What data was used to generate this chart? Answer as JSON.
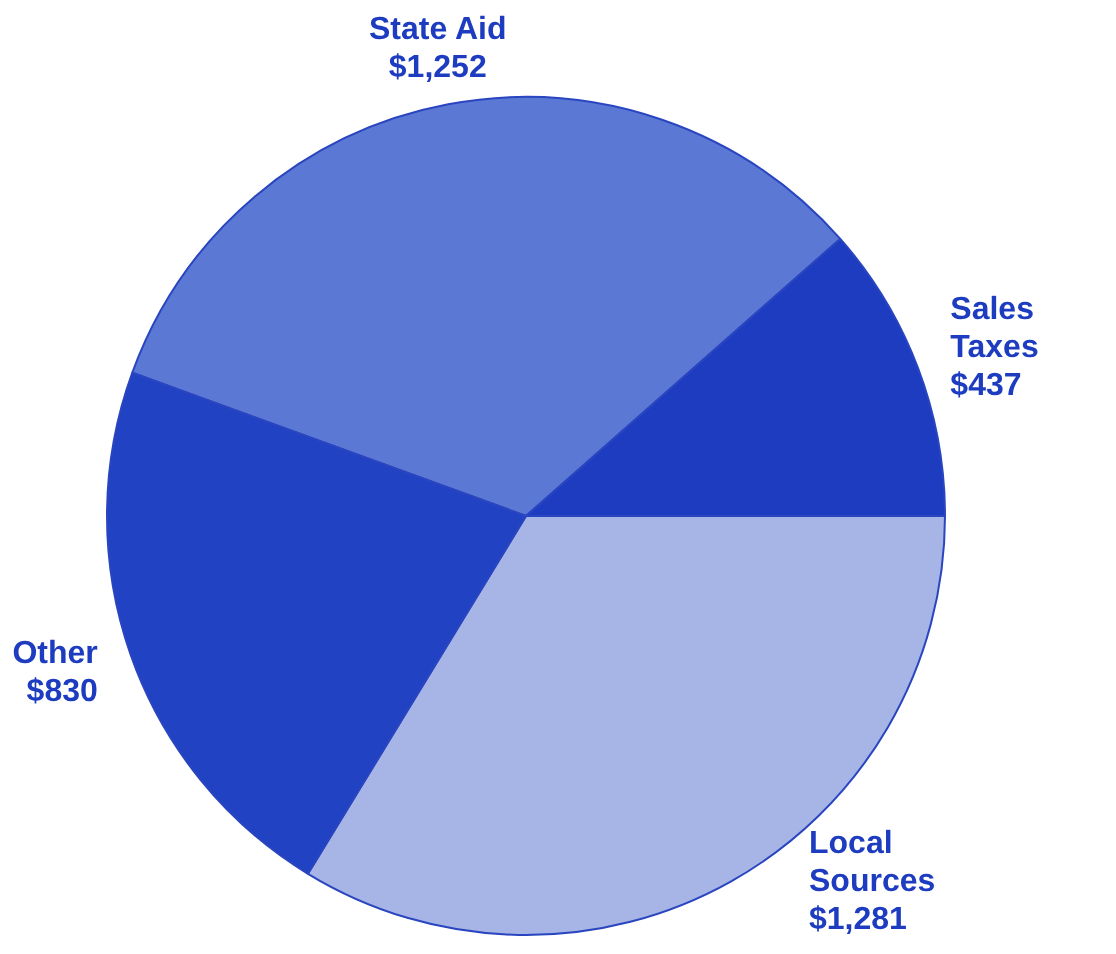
{
  "chart_data": {
    "type": "pie",
    "categories": [
      "State Aid",
      "Sales Taxes",
      "Local Sources",
      "Other"
    ],
    "values": [
      1252,
      437,
      1281,
      830
    ],
    "value_labels": [
      "$1,252",
      "$437",
      "$1,281",
      "$830"
    ],
    "colors": [
      "#5a78d4",
      "#1d3cc0",
      "#a6b4e6",
      "#2142c2"
    ],
    "legend": false
  }
}
